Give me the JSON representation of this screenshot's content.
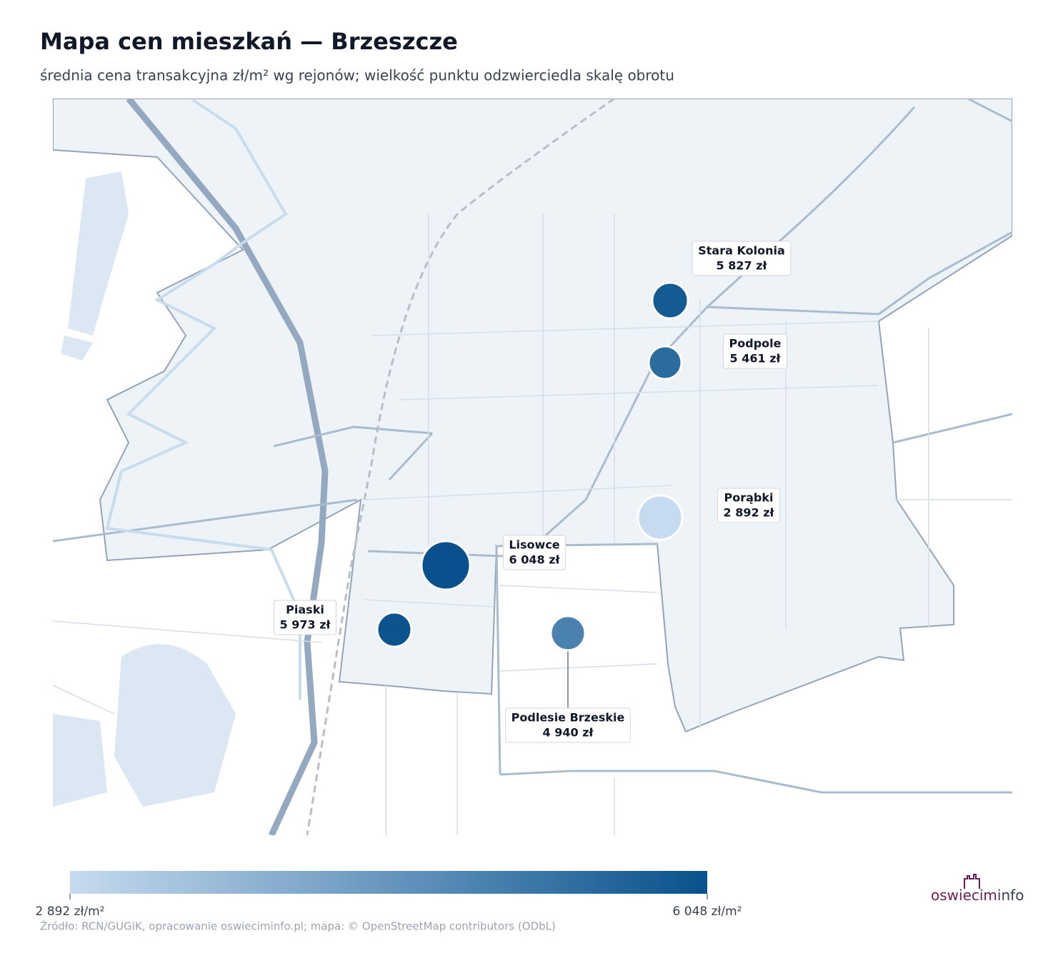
{
  "header": {
    "title": "Mapa cen mieszkań — Brzeszcze",
    "subtitle": "średnia cena transakcyjna zł/m² wg rejonów; wielkość punktu odzwierciedla skalę obrotu"
  },
  "map": {
    "regions": [
      {
        "name": "Stara Kolonia",
        "value": 5827,
        "value_label": "5 827 zł"
      },
      {
        "name": "Podpole",
        "value": 5461,
        "value_label": "5 461 zł"
      },
      {
        "name": "Porąbki",
        "value": 2892,
        "value_label": "2 892 zł"
      },
      {
        "name": "Lisowce",
        "value": 6048,
        "value_label": "6 048 zł"
      },
      {
        "name": "Piaski",
        "value": 5973,
        "value_label": "5 973 zł"
      },
      {
        "name": "Podlesie Brzeskie",
        "value": 4940,
        "value_label": "4 940 zł"
      }
    ]
  },
  "colorbar": {
    "range": [
      2892,
      6048
    ],
    "colors": [
      "#c6dbef",
      "#08518c"
    ],
    "ticks": [
      {
        "value": 2892,
        "label": "2 892 zł/m²"
      },
      {
        "value": 6048,
        "label": "6 048 zł/m²"
      }
    ]
  },
  "footer": {
    "source": "Źródło: RCN/GUGiK, opracowanie oswieciminfo.pl; mapa: © OpenStreetMap contributors (ODbL)",
    "logo_main": "oswiecim",
    "logo_suffix": "info"
  }
}
